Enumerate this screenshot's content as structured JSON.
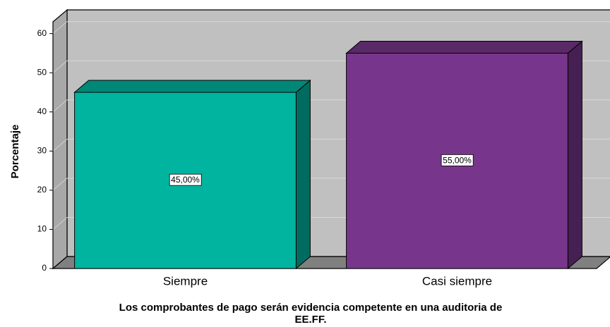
{
  "chart_data": {
    "type": "bar3d",
    "x_label": "Los comprobantes de pago serán evidencia competente en una auditoria de EE.FF.",
    "y_label": "Porcentaje",
    "categories": [
      "Siempre",
      "Casi siempre"
    ],
    "values": [
      45,
      55
    ],
    "value_labels": [
      "45,00%",
      "55,00%"
    ],
    "colors": [
      "#00b49f",
      "#77368b"
    ],
    "ylim": [
      0,
      63
    ],
    "yticks": [
      0,
      10,
      20,
      30,
      40,
      50,
      60
    ],
    "grid": true
  }
}
